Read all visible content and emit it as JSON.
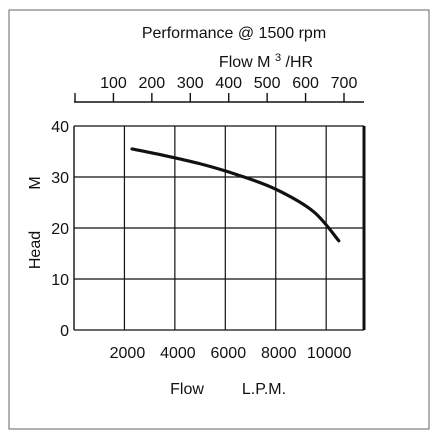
{
  "chart_data": {
    "type": "line",
    "title": "Performance @ 1500 rpm",
    "xlabel": "Flow",
    "xlabel_unit": "L.P.M.",
    "ylabel": "Head",
    "ylabel_unit": "M",
    "x": [
      2300,
      3500,
      5000,
      6500,
      8000,
      9500,
      10500
    ],
    "series": [
      {
        "values": [
          35.5,
          34.3,
          32.6,
          30.4,
          27.6,
          23.2,
          17.5
        ]
      }
    ],
    "xlim": [
      0,
      11500
    ],
    "ylim": [
      0,
      40
    ],
    "x_ticks": [
      2000,
      4000,
      6000,
      8000,
      10000
    ],
    "x_tick_labels": [
      "2000",
      "4000",
      "6000",
      "8000",
      "10000"
    ],
    "y_ticks": [
      0,
      10,
      20,
      30,
      40
    ],
    "y_tick_labels": [
      "0",
      "10",
      "20",
      "30",
      "40"
    ],
    "grid": true,
    "secondary_axis": {
      "position": "top",
      "label": "Flow",
      "unit_main": "M",
      "unit_sup": "3",
      "unit_rest": "/HR",
      "ticks": [
        100,
        200,
        300,
        400,
        500,
        600,
        700
      ],
      "tick_labels": [
        "100",
        "200",
        "300",
        "400",
        "500",
        "600",
        "700"
      ]
    },
    "curve_color": "#111111",
    "grid_color": "#111111"
  }
}
